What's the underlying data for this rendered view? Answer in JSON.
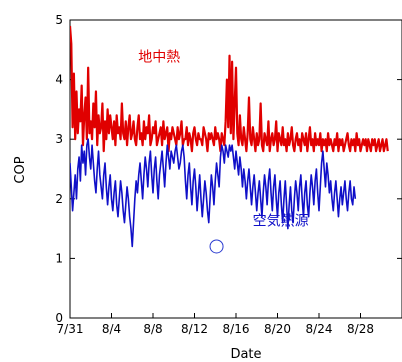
{
  "chart_data": {
    "type": "line",
    "title": "",
    "xlabel": "Date",
    "ylabel": "COP",
    "ylim": [
      0,
      5
    ],
    "xlim": [
      "7/31",
      "9/1"
    ],
    "yticks": [
      "0",
      "1",
      "2",
      "3",
      "4",
      "5"
    ],
    "xticks": [
      "7/31",
      "8/4",
      "8/8",
      "8/12",
      "8/16",
      "8/20",
      "8/24",
      "8/28"
    ],
    "grid": false,
    "legend": "none",
    "x_step_days": 0.125,
    "series": [
      {
        "name": "地中熱",
        "color": "#e00000",
        "values": [
          4.9,
          4.6,
          3.2,
          4.1,
          3.0,
          3.8,
          3.1,
          3.5,
          3.3,
          3.9,
          2.9,
          3.4,
          3.7,
          3.0,
          4.2,
          3.1,
          3.3,
          3.0,
          3.6,
          3.2,
          3.8,
          2.9,
          3.4,
          3.1,
          3.2,
          3.6,
          2.8,
          3.3,
          3.0,
          3.5,
          3.1,
          3.4,
          3.2,
          3.0,
          3.3,
          2.9,
          3.4,
          3.1,
          3.2,
          3.0,
          3.6,
          3.1,
          3.0,
          3.3,
          2.9,
          3.2,
          3.4,
          3.0,
          3.1,
          3.3,
          3.0,
          2.9,
          3.2,
          3.4,
          3.0,
          3.1,
          2.9,
          3.3,
          3.0,
          3.2,
          3.1,
          3.4,
          2.9,
          3.0,
          3.2,
          3.1,
          3.3,
          2.9,
          3.0,
          3.1,
          3.2,
          2.9,
          3.3,
          3.0,
          3.1,
          3.2,
          2.8,
          3.1,
          3.0,
          3.2,
          3.1,
          3.0,
          2.9,
          3.2,
          3.0,
          3.1,
          3.3,
          2.9,
          3.0,
          3.0,
          3.2,
          2.9,
          3.1,
          3.0,
          2.8,
          3.1,
          3.2,
          3.0,
          2.9,
          3.1,
          3.0,
          3.0,
          2.9,
          3.2,
          3.1,
          3.0,
          2.8,
          3.1,
          3.0,
          3.1,
          3.0,
          2.9,
          3.2,
          3.0,
          3.1,
          3.0,
          2.8,
          3.1,
          3.0,
          2.9,
          3.3,
          4.0,
          3.2,
          4.4,
          3.1,
          4.3,
          3.0,
          3.6,
          4.2,
          3.1,
          2.9,
          3.4,
          3.0,
          2.9,
          3.2,
          3.0,
          2.8,
          3.1,
          3.7,
          3.0,
          2.9,
          3.2,
          3.0,
          2.8,
          3.1,
          2.9,
          3.0,
          3.6,
          2.9,
          2.8,
          3.1,
          3.0,
          2.9,
          3.3,
          2.8,
          3.0,
          3.1,
          2.9,
          3.0,
          3.3,
          2.8,
          3.1,
          3.0,
          2.9,
          3.2,
          2.9,
          3.0,
          2.8,
          3.1,
          2.9,
          3.0,
          3.2,
          2.9,
          2.8,
          3.0,
          3.1,
          2.9,
          3.0,
          2.8,
          3.1,
          3.0,
          2.9,
          3.1,
          2.8,
          3.0,
          3.2,
          2.9,
          3.0,
          2.8,
          3.1,
          2.9,
          3.0,
          2.9,
          3.1,
          2.8,
          3.0,
          2.9,
          3.0,
          2.8,
          3.1,
          2.9,
          3.0,
          2.9,
          2.8,
          3.0,
          2.9,
          3.1,
          2.8,
          3.0,
          2.9,
          3.0,
          2.8,
          2.9,
          3.0,
          3.1,
          2.9,
          2.8,
          3.0,
          2.9,
          3.0,
          2.8,
          3.1,
          2.9,
          3.0,
          2.8,
          2.9,
          3.0,
          2.9,
          3.0,
          2.8,
          3.0,
          2.9,
          2.8,
          3.0,
          2.9,
          3.0,
          2.8,
          2.9,
          3.0,
          2.8,
          2.9,
          3.0,
          2.8,
          2.9,
          3.0,
          2.8
        ]
      },
      {
        "name": "空気熱源",
        "color": "#1010c8",
        "values": [
          2.6,
          2.2,
          1.8,
          2.1,
          2.4,
          2.0,
          2.5,
          2.7,
          2.3,
          2.9,
          2.6,
          2.8,
          2.4,
          2.9,
          3.0,
          2.7,
          2.5,
          2.9,
          2.6,
          2.3,
          2.1,
          2.5,
          2.8,
          2.4,
          2.2,
          2.0,
          2.4,
          2.6,
          2.2,
          1.9,
          2.2,
          2.4,
          2.0,
          1.8,
          2.1,
          2.3,
          1.9,
          1.7,
          2.0,
          2.3,
          2.1,
          1.8,
          1.6,
          1.9,
          2.2,
          2.0,
          1.7,
          1.5,
          1.2,
          1.6,
          2.0,
          2.3,
          2.1,
          2.4,
          2.6,
          2.3,
          2.0,
          2.4,
          2.7,
          2.5,
          2.2,
          2.6,
          2.8,
          2.4,
          2.1,
          2.5,
          2.7,
          2.3,
          2.0,
          2.4,
          2.6,
          2.8,
          2.5,
          2.2,
          2.6,
          2.9,
          2.7,
          2.5,
          2.8,
          2.7,
          2.6,
          2.8,
          2.9,
          2.7,
          2.5,
          2.6,
          2.8,
          2.9,
          2.7,
          2.3,
          2.0,
          2.4,
          2.6,
          2.2,
          1.9,
          2.3,
          2.5,
          2.2,
          1.8,
          2.1,
          2.4,
          2.0,
          1.7,
          2.0,
          2.3,
          2.1,
          1.8,
          1.6,
          2.0,
          2.4,
          2.2,
          1.9,
          2.3,
          2.6,
          2.4,
          2.2,
          2.7,
          2.9,
          2.8,
          2.6,
          2.9,
          2.8,
          2.7,
          2.9,
          2.8,
          2.9,
          2.7,
          2.5,
          2.8,
          2.6,
          2.4,
          2.7,
          2.5,
          2.2,
          2.5,
          2.3,
          2.0,
          2.3,
          2.5,
          2.2,
          1.9,
          2.2,
          2.4,
          2.1,
          1.8,
          2.1,
          2.3,
          2.0,
          1.7,
          2.1,
          2.4,
          2.2,
          1.9,
          2.3,
          2.5,
          2.1,
          1.8,
          2.2,
          2.4,
          2.0,
          1.7,
          2.1,
          2.3,
          1.9,
          1.6,
          2.0,
          2.3,
          1.9,
          1.5,
          1.9,
          2.2,
          1.8,
          1.6,
          2.0,
          2.3,
          2.1,
          1.8,
          2.2,
          2.4,
          2.0,
          1.7,
          2.1,
          2.3,
          1.9,
          1.7,
          2.1,
          2.4,
          2.2,
          1.9,
          2.3,
          2.5,
          2.1,
          1.8,
          2.2,
          2.6,
          2.8,
          2.5,
          2.2,
          2.6,
          2.4,
          2.1,
          2.3,
          2.0,
          1.8,
          2.1,
          2.3,
          2.0,
          1.7,
          2.0,
          2.2,
          1.9,
          2.1,
          2.3,
          2.0,
          1.8,
          2.1,
          2.3,
          2.0,
          1.9,
          2.2,
          2.0
        ]
      }
    ],
    "annotations": [
      {
        "text": "地中熱",
        "color": "#e00000",
        "x": 8.6,
        "y": 4.3
      },
      {
        "text": "空気熱源",
        "color": "#1010c8",
        "x": 20.3,
        "y": 1.55
      },
      {
        "type": "circle",
        "x": 14.125,
        "y": 1.2
      }
    ]
  }
}
